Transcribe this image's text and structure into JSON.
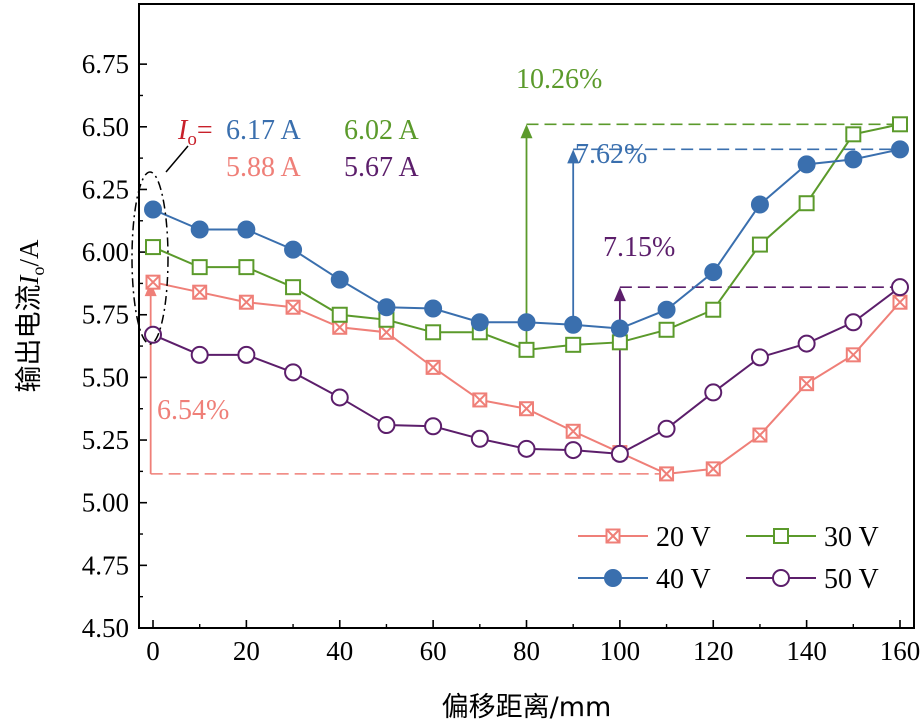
{
  "chart_data": {
    "type": "line",
    "xlabel": "偏移距离/mm",
    "ylabel_prefix": "输出电流",
    "ylabel_symbol": "I",
    "ylabel_sub": "o",
    "ylabel_unit": "/A",
    "xlim": [
      -3,
      163
    ],
    "ylim": [
      4.5,
      6.99
    ],
    "x_ticks": [
      0,
      20,
      40,
      60,
      80,
      100,
      120,
      140,
      160
    ],
    "x_ticks_minor": [
      10,
      30,
      50,
      70,
      90,
      110,
      130,
      150
    ],
    "y_ticks": [
      "4.50",
      "4.75",
      "5.00",
      "5.25",
      "5.50",
      "5.75",
      "6.00",
      "6.25",
      "6.50",
      "6.75"
    ],
    "x": [
      0,
      10,
      20,
      30,
      40,
      50,
      60,
      70,
      80,
      90,
      100,
      110,
      120,
      130,
      140,
      150,
      160
    ],
    "series": [
      {
        "name": "20 V",
        "marker": "xsquare",
        "color": "#ef7f78",
        "values": [
          5.88,
          5.84,
          5.8,
          5.78,
          5.7,
          5.68,
          5.54,
          5.41,
          5.375,
          5.285,
          5.2,
          5.115,
          5.135,
          5.27,
          5.475,
          5.59,
          5.8
        ]
      },
      {
        "name": "30 V",
        "marker": "square",
        "color": "#5b9a2b",
        "values": [
          6.02,
          5.94,
          5.94,
          5.86,
          5.75,
          5.73,
          5.68,
          5.68,
          5.61,
          5.63,
          5.64,
          5.69,
          5.77,
          6.03,
          6.195,
          6.47,
          6.51
        ]
      },
      {
        "name": "40 V",
        "marker": "dot",
        "color": "#3a6fae",
        "values": [
          6.17,
          6.09,
          6.09,
          6.01,
          5.89,
          5.78,
          5.775,
          5.72,
          5.72,
          5.71,
          5.695,
          5.77,
          5.92,
          6.19,
          6.35,
          6.37,
          6.41
        ]
      },
      {
        "name": "50 V",
        "marker": "circle",
        "color": "#5c1e6b",
        "values": [
          5.67,
          5.59,
          5.59,
          5.52,
          5.42,
          5.31,
          5.305,
          5.255,
          5.215,
          5.21,
          5.195,
          5.295,
          5.44,
          5.58,
          5.635,
          5.72,
          5.86
        ]
      }
    ],
    "legend_position": "bottom-right",
    "annotations": {
      "io_prefix": "I",
      "io_sub": "o",
      "io_eq": "=",
      "io_40v": "6.17 A",
      "io_30v": "6.02 A",
      "io_20v": "5.88 A",
      "io_50v": "5.67 A",
      "pct_20v": "6.54%",
      "pct_30v": "10.26%",
      "pct_40v": "7.62%",
      "pct_50v": "7.15%"
    },
    "reference_lines": {
      "pct_20v": {
        "y_from": 5.115,
        "y_to": 5.88,
        "x_arrow": -0.5
      },
      "pct_30v": {
        "y_from": 5.61,
        "y_to": 6.51,
        "x_arrow": 80
      },
      "pct_40v": {
        "y_from": 5.71,
        "y_to": 6.41,
        "x_arrow": 90
      },
      "pct_50v": {
        "y_from": 5.195,
        "y_to": 5.86,
        "x_arrow": 100
      }
    }
  }
}
